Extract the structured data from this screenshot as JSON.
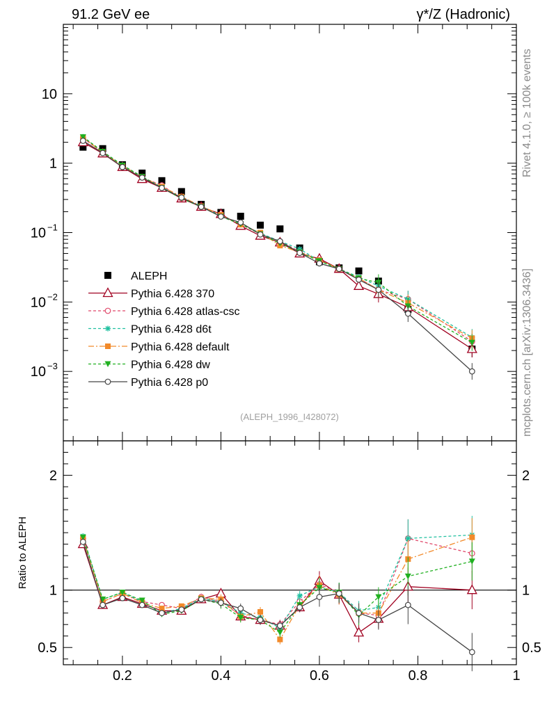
{
  "header": {
    "left": "91.2 GeV ee",
    "right": "γ*/Z (Hadronic)"
  },
  "side": {
    "rivet": "Rivet 4.1.0, ≥ 100k events",
    "mcplots": "mcplots.cern.ch [arXiv:1306.3436]"
  },
  "analysis_label": "(ALEPH_1996_I428072)",
  "colors": {
    "ALEPH": "#000000",
    "370": "#a00020",
    "atlas-csc": "#e0486a",
    "d6t": "#20c0a0",
    "default": "#f28a2a",
    "dw": "#20b020",
    "p0": "#444444"
  },
  "chart_data": [
    {
      "type": "scatter",
      "title": "",
      "xlabel": "",
      "ylabel": "",
      "yscale": "log",
      "xlim": [
        0.08,
        1.0
      ],
      "ylim": [
        0.0001,
        100
      ],
      "y_tick_labels": [
        {
          "value": 10,
          "base": "10",
          "exp": ""
        },
        {
          "value": 1,
          "base": "1",
          "exp": ""
        },
        {
          "value": 0.1,
          "base": "10",
          "exp": "−1"
        },
        {
          "value": 0.01,
          "base": "10",
          "exp": "−2"
        },
        {
          "value": 0.001,
          "base": "10",
          "exp": "−3"
        }
      ],
      "x": [
        0.12,
        0.16,
        0.2,
        0.24,
        0.28,
        0.32,
        0.36,
        0.4,
        0.44,
        0.48,
        0.52,
        0.56,
        0.6,
        0.64,
        0.68,
        0.72,
        0.78,
        0.91
      ],
      "series": [
        {
          "name": "ALEPH",
          "key": "ALEPH",
          "label": "ALEPH",
          "values": [
            1.7,
            1.62,
            0.95,
            0.72,
            0.56,
            0.39,
            0.255,
            0.195,
            0.172,
            0.128,
            0.113,
            0.06,
            0.038,
            0.031,
            0.028,
            0.02,
            0.0078,
            0.0021
          ]
        },
        {
          "name": "Pythia 6.428 370",
          "key": "370",
          "label": "Pythia 6.428 370",
          "values": [
            2.0,
            1.38,
            0.88,
            0.59,
            0.44,
            0.31,
            0.235,
            0.185,
            0.125,
            0.09,
            0.072,
            0.05,
            0.042,
            0.03,
            0.017,
            0.013,
            0.0084,
            0.0021
          ]
        },
        {
          "name": "Pythia 6.428 atlas-csc",
          "key": "atlas-csc",
          "label": "Pythia 6.428 atlas-csc",
          "values": [
            2.3,
            1.42,
            0.92,
            0.62,
            0.48,
            0.31,
            0.235,
            0.175,
            0.132,
            0.096,
            0.075,
            0.053,
            0.04,
            0.03,
            0.022,
            0.015,
            0.011,
            0.0027
          ]
        },
        {
          "name": "Pythia 6.428 d6t",
          "key": "d6t",
          "label": "Pythia 6.428 d6t",
          "values": [
            2.4,
            1.47,
            0.94,
            0.64,
            0.45,
            0.32,
            0.24,
            0.175,
            0.135,
            0.098,
            0.075,
            0.058,
            0.039,
            0.03,
            0.023,
            0.017,
            0.011,
            0.0031
          ]
        },
        {
          "name": "Pythia 6.428 default",
          "key": "default",
          "label": "Pythia 6.428 default",
          "values": [
            2.35,
            1.42,
            0.92,
            0.63,
            0.46,
            0.33,
            0.24,
            0.18,
            0.13,
            0.1,
            0.065,
            0.052,
            0.04,
            0.03,
            0.022,
            0.015,
            0.0097,
            0.003
          ]
        },
        {
          "name": "Pythia 6.428 dw",
          "key": "dw",
          "label": "Pythia 6.428 dw",
          "values": [
            2.38,
            1.47,
            0.93,
            0.64,
            0.44,
            0.31,
            0.235,
            0.17,
            0.133,
            0.095,
            0.07,
            0.052,
            0.039,
            0.03,
            0.022,
            0.019,
            0.0087,
            0.0026
          ]
        },
        {
          "name": "Pythia 6.428 p0",
          "key": "p0",
          "label": "Pythia 6.428 p0",
          "values": [
            2.1,
            1.4,
            0.88,
            0.62,
            0.44,
            0.32,
            0.235,
            0.17,
            0.14,
            0.094,
            0.075,
            0.051,
            0.036,
            0.03,
            0.021,
            0.015,
            0.0068,
            0.001
          ]
        }
      ]
    },
    {
      "type": "line",
      "title": "",
      "xlabel": "",
      "ylabel": "Ratio to ALEPH",
      "xlim": [
        0.08,
        1.0
      ],
      "ylim": [
        0.35,
        2.3
      ],
      "x_ticks": [
        0.2,
        0.4,
        0.6,
        0.8,
        1.0
      ],
      "x_tick_labels": [
        "0.2",
        "0.4",
        "0.6",
        "0.8",
        "1"
      ],
      "y_ticks": [
        0.5,
        1,
        2
      ],
      "y_tick_labels": [
        "0.5",
        "1",
        "2"
      ],
      "x": [
        0.12,
        0.16,
        0.2,
        0.24,
        0.28,
        0.32,
        0.36,
        0.4,
        0.44,
        0.48,
        0.52,
        0.56,
        0.6,
        0.64,
        0.68,
        0.72,
        0.78,
        0.91
      ],
      "series": [
        {
          "name": "Pythia 6.428 370",
          "key": "370",
          "values": [
            1.4,
            0.87,
            0.94,
            0.88,
            0.82,
            0.82,
            0.92,
            0.97,
            0.77,
            0.74,
            0.69,
            0.85,
            1.08,
            0.96,
            0.63,
            0.75,
            1.03,
            1.0
          ]
        },
        {
          "name": "Pythia 6.428 atlas-csc",
          "key": "atlas-csc",
          "values": [
            1.45,
            0.9,
            0.97,
            0.9,
            0.87,
            0.84,
            0.94,
            0.9,
            0.78,
            0.74,
            0.7,
            0.9,
            1.05,
            0.98,
            0.8,
            0.78,
            1.45,
            1.32
          ]
        },
        {
          "name": "Pythia 6.428 d6t",
          "key": "d6t",
          "values": [
            1.47,
            0.92,
            0.98,
            0.9,
            0.8,
            0.84,
            0.93,
            0.9,
            0.8,
            0.76,
            0.67,
            0.95,
            1.03,
            0.98,
            0.82,
            0.85,
            1.45,
            1.48
          ]
        },
        {
          "name": "Pythia 6.428 default",
          "key": "default",
          "values": [
            1.45,
            0.9,
            0.97,
            0.89,
            0.84,
            0.86,
            0.93,
            0.92,
            0.77,
            0.81,
            0.57,
            0.87,
            1.04,
            0.96,
            0.8,
            0.8,
            1.27,
            1.46
          ]
        },
        {
          "name": "Pythia 6.428 dw",
          "key": "dw",
          "values": [
            1.46,
            0.92,
            0.98,
            0.91,
            0.79,
            0.82,
            0.92,
            0.88,
            0.76,
            0.74,
            0.63,
            0.87,
            1.02,
            0.98,
            0.78,
            0.94,
            1.12,
            1.25
          ]
        },
        {
          "name": "Pythia 6.428 p0",
          "key": "p0",
          "values": [
            1.42,
            0.87,
            0.93,
            0.87,
            0.8,
            0.83,
            0.92,
            0.89,
            0.84,
            0.74,
            0.69,
            0.85,
            0.94,
            0.97,
            0.8,
            0.74,
            0.87,
            0.46
          ]
        }
      ]
    }
  ]
}
